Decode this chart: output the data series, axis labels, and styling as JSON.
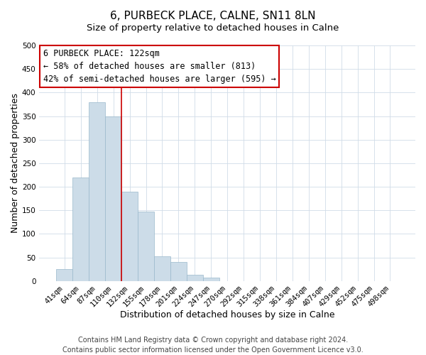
{
  "title": "6, PURBECK PLACE, CALNE, SN11 8LN",
  "subtitle": "Size of property relative to detached houses in Calne",
  "xlabel": "Distribution of detached houses by size in Calne",
  "ylabel": "Number of detached properties",
  "bar_labels": [
    "41sqm",
    "64sqm",
    "87sqm",
    "110sqm",
    "132sqm",
    "155sqm",
    "178sqm",
    "201sqm",
    "224sqm",
    "247sqm",
    "270sqm",
    "292sqm",
    "315sqm",
    "338sqm",
    "361sqm",
    "384sqm",
    "407sqm",
    "429sqm",
    "452sqm",
    "475sqm",
    "498sqm"
  ],
  "bar_values": [
    25,
    220,
    380,
    350,
    190,
    147,
    53,
    40,
    13,
    7,
    0,
    0,
    0,
    0,
    0,
    0,
    0,
    0,
    0,
    0,
    0
  ],
  "bar_color": "#ccdce8",
  "bar_edgecolor": "#9ab8cc",
  "vline_color": "#cc0000",
  "vline_pos": 3.5,
  "ylim": [
    0,
    500
  ],
  "yticks": [
    0,
    50,
    100,
    150,
    200,
    250,
    300,
    350,
    400,
    450,
    500
  ],
  "annotation_title": "6 PURBECK PLACE: 122sqm",
  "annotation_line1": "← 58% of detached houses are smaller (813)",
  "annotation_line2": "42% of semi-detached houses are larger (595) →",
  "annotation_box_color": "#ffffff",
  "annotation_box_edgecolor": "#cc0000",
  "footer_line1": "Contains HM Land Registry data © Crown copyright and database right 2024.",
  "footer_line2": "Contains public sector information licensed under the Open Government Licence v3.0.",
  "title_fontsize": 11,
  "subtitle_fontsize": 9.5,
  "xlabel_fontsize": 9,
  "ylabel_fontsize": 9,
  "tick_fontsize": 7.5,
  "footer_fontsize": 7,
  "annotation_fontsize": 8.5
}
